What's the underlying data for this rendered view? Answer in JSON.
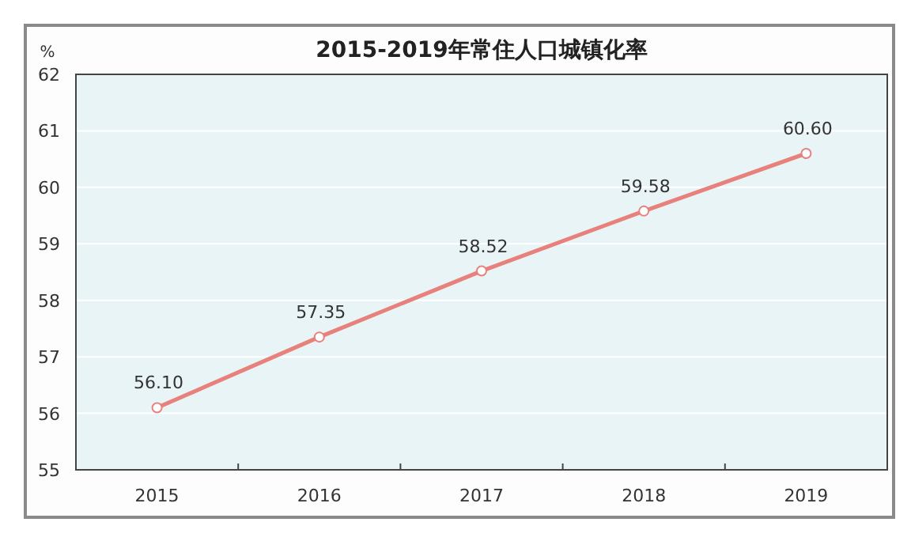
{
  "chart_data": {
    "type": "line",
    "title": "2015-2019年常住人口城镇化率",
    "ylabel": "%",
    "categories": [
      "2015",
      "2016",
      "2017",
      "2018",
      "2019"
    ],
    "series": [
      {
        "color": "#e8807c",
        "values": [
          56.1,
          57.35,
          58.52,
          59.58,
          60.6
        ],
        "value_labels": [
          "56.10",
          "57.35",
          "58.52",
          "59.58",
          "60.60"
        ]
      }
    ],
    "ylim": [
      55,
      62
    ],
    "yticks": [
      55,
      56,
      57,
      58,
      59,
      60,
      61,
      62
    ],
    "grid": "y",
    "marker": "circle",
    "line_style": "solid"
  }
}
